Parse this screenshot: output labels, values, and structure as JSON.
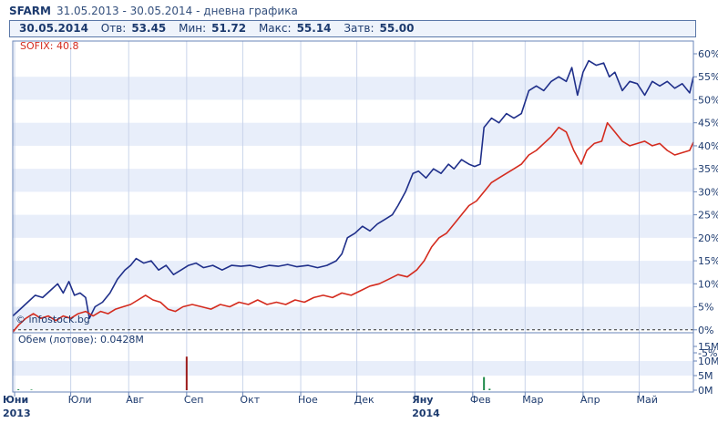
{
  "header": {
    "symbol": "SFARM",
    "range_text": "31.05.2013 - 30.05.2014 - дневна графика"
  },
  "quote": {
    "date": "30.05.2014",
    "open_label": "Отв:",
    "open_value": "53.45",
    "min_label": "Мин:",
    "min_value": "51.72",
    "max_label": "Макс:",
    "max_value": "55.14",
    "close_label": "Затв:",
    "close_value": "55.00"
  },
  "watermark": "© infostock.bg",
  "volume_label": "Обем (лотове): 0.0428M",
  "colors": {
    "main_series": "#1f2f8a",
    "index_series": "#d42b1e",
    "band": "#e8eefa",
    "grid": "#c9d4ea",
    "frame": "#6a86b8",
    "volume_up": "#1f8a4a",
    "volume_down": "#9b1c1c"
  },
  "chart_data": [
    {
      "type": "line",
      "x_range": [
        "2013-05-31",
        "2014-05-30"
      ],
      "x_ticks": [
        {
          "date": "2013-06-01",
          "label": "Юни"
        },
        {
          "date": "2013-07-01",
          "label": "Юли"
        },
        {
          "date": "2013-08-01",
          "label": "Авг"
        },
        {
          "date": "2013-09-01",
          "label": "Сеп"
        },
        {
          "date": "2013-10-01",
          "label": "Окт"
        },
        {
          "date": "2013-11-01",
          "label": "Ное"
        },
        {
          "date": "2013-12-01",
          "label": "Дек"
        },
        {
          "date": "2014-01-01",
          "label": "Яну"
        },
        {
          "date": "2014-02-01",
          "label": "Фев"
        },
        {
          "date": "2014-03-01",
          "label": "Мар"
        },
        {
          "date": "2014-04-01",
          "label": "Апр"
        },
        {
          "date": "2014-05-01",
          "label": "Май"
        }
      ],
      "year_labels": [
        {
          "date": "2013-06-01",
          "label": "2013"
        },
        {
          "date": "2014-01-01",
          "label": "2014"
        }
      ],
      "y_ticks": [
        "60%",
        "55%",
        "50%",
        "45%",
        "40%",
        "35%",
        "30%",
        "25%",
        "20%",
        "15%",
        "10%",
        "5%",
        "0%",
        "-5%"
      ],
      "ylim": [
        -5,
        60
      ],
      "series": [
        {
          "name": "SFARM",
          "points": [
            [
              "2013-05-31",
              3
            ],
            [
              "2013-06-04",
              4.5
            ],
            [
              "2013-06-08",
              6
            ],
            [
              "2013-06-12",
              7.5
            ],
            [
              "2013-06-16",
              7
            ],
            [
              "2013-06-20",
              8.5
            ],
            [
              "2013-06-24",
              10
            ],
            [
              "2013-06-27",
              8
            ],
            [
              "2013-06-30",
              10.5
            ],
            [
              "2013-07-03",
              7.5
            ],
            [
              "2013-07-06",
              8
            ],
            [
              "2013-07-09",
              7
            ],
            [
              "2013-07-11",
              2.5
            ],
            [
              "2013-07-14",
              5
            ],
            [
              "2013-07-18",
              6
            ],
            [
              "2013-07-22",
              8
            ],
            [
              "2013-07-26",
              11
            ],
            [
              "2013-07-30",
              13
            ],
            [
              "2013-08-02",
              14
            ],
            [
              "2013-08-05",
              15.5
            ],
            [
              "2013-08-09",
              14.5
            ],
            [
              "2013-08-13",
              15
            ],
            [
              "2013-08-17",
              13
            ],
            [
              "2013-08-21",
              14
            ],
            [
              "2013-08-25",
              12
            ],
            [
              "2013-08-29",
              13
            ],
            [
              "2013-09-02",
              14
            ],
            [
              "2013-09-06",
              14.5
            ],
            [
              "2013-09-10",
              13.5
            ],
            [
              "2013-09-15",
              14
            ],
            [
              "2013-09-20",
              13
            ],
            [
              "2013-09-25",
              14
            ],
            [
              "2013-09-30",
              13.8
            ],
            [
              "2013-10-05",
              14
            ],
            [
              "2013-10-10",
              13.5
            ],
            [
              "2013-10-15",
              14
            ],
            [
              "2013-10-20",
              13.8
            ],
            [
              "2013-10-25",
              14.2
            ],
            [
              "2013-10-30",
              13.7
            ],
            [
              "2013-11-05",
              14
            ],
            [
              "2013-11-10",
              13.5
            ],
            [
              "2013-11-15",
              14
            ],
            [
              "2013-11-20",
              15
            ],
            [
              "2013-11-23",
              16.5
            ],
            [
              "2013-11-26",
              20
            ],
            [
              "2013-11-30",
              21
            ],
            [
              "2013-12-04",
              22.5
            ],
            [
              "2013-12-08",
              21.5
            ],
            [
              "2013-12-12",
              23
            ],
            [
              "2013-12-16",
              24
            ],
            [
              "2013-12-20",
              25
            ],
            [
              "2013-12-23",
              27
            ],
            [
              "2013-12-27",
              30
            ],
            [
              "2013-12-31",
              34
            ],
            [
              "2014-01-03",
              34.5
            ],
            [
              "2014-01-07",
              33
            ],
            [
              "2014-01-11",
              35
            ],
            [
              "2014-01-15",
              34
            ],
            [
              "2014-01-19",
              36
            ],
            [
              "2014-01-22",
              35
            ],
            [
              "2014-01-26",
              37
            ],
            [
              "2014-01-30",
              36
            ],
            [
              "2014-02-02",
              35.5
            ],
            [
              "2014-02-05",
              36
            ],
            [
              "2014-02-07",
              44
            ],
            [
              "2014-02-11",
              46
            ],
            [
              "2014-02-15",
              45
            ],
            [
              "2014-02-19",
              47
            ],
            [
              "2014-02-23",
              46
            ],
            [
              "2014-02-27",
              47
            ],
            [
              "2014-03-03",
              52
            ],
            [
              "2014-03-07",
              53
            ],
            [
              "2014-03-11",
              52
            ],
            [
              "2014-03-15",
              54
            ],
            [
              "2014-03-19",
              55
            ],
            [
              "2014-03-23",
              54
            ],
            [
              "2014-03-26",
              57
            ],
            [
              "2014-03-29",
              51
            ],
            [
              "2014-04-01",
              56
            ],
            [
              "2014-04-04",
              58.5
            ],
            [
              "2014-04-08",
              57.5
            ],
            [
              "2014-04-12",
              58
            ],
            [
              "2014-04-15",
              55
            ],
            [
              "2014-04-18",
              56
            ],
            [
              "2014-04-22",
              52
            ],
            [
              "2014-04-26",
              54
            ],
            [
              "2014-04-30",
              53.5
            ],
            [
              "2014-05-04",
              51
            ],
            [
              "2014-05-08",
              54
            ],
            [
              "2014-05-12",
              53
            ],
            [
              "2014-05-16",
              54
            ],
            [
              "2014-05-20",
              52.5
            ],
            [
              "2014-05-24",
              53.5
            ],
            [
              "2014-05-28",
              51.5
            ],
            [
              "2014-05-30",
              55
            ]
          ]
        },
        {
          "name": "SOFIX: 40.8",
          "points": [
            [
              "2013-05-31",
              -0.5
            ],
            [
              "2013-06-03",
              1
            ],
            [
              "2013-06-07",
              2.5
            ],
            [
              "2013-06-11",
              3.5
            ],
            [
              "2013-06-15",
              2.5
            ],
            [
              "2013-06-19",
              3
            ],
            [
              "2013-06-23",
              2
            ],
            [
              "2013-06-27",
              3
            ],
            [
              "2013-07-01",
              2.5
            ],
            [
              "2013-07-05",
              3.5
            ],
            [
              "2013-07-09",
              4
            ],
            [
              "2013-07-13",
              3
            ],
            [
              "2013-07-17",
              4
            ],
            [
              "2013-07-21",
              3.5
            ],
            [
              "2013-07-25",
              4.5
            ],
            [
              "2013-07-29",
              5
            ],
            [
              "2013-08-02",
              5.5
            ],
            [
              "2013-08-06",
              6.5
            ],
            [
              "2013-08-10",
              7.5
            ],
            [
              "2013-08-14",
              6.5
            ],
            [
              "2013-08-18",
              6
            ],
            [
              "2013-08-22",
              4.5
            ],
            [
              "2013-08-26",
              4
            ],
            [
              "2013-08-30",
              5
            ],
            [
              "2013-09-04",
              5.5
            ],
            [
              "2013-09-09",
              5
            ],
            [
              "2013-09-14",
              4.5
            ],
            [
              "2013-09-19",
              5.5
            ],
            [
              "2013-09-24",
              5
            ],
            [
              "2013-09-29",
              6
            ],
            [
              "2013-10-04",
              5.5
            ],
            [
              "2013-10-09",
              6.5
            ],
            [
              "2013-10-14",
              5.5
            ],
            [
              "2013-10-19",
              6
            ],
            [
              "2013-10-24",
              5.5
            ],
            [
              "2013-10-29",
              6.5
            ],
            [
              "2013-11-03",
              6
            ],
            [
              "2013-11-08",
              7
            ],
            [
              "2013-11-13",
              7.5
            ],
            [
              "2013-11-18",
              7
            ],
            [
              "2013-11-23",
              8
            ],
            [
              "2013-11-28",
              7.5
            ],
            [
              "2013-12-03",
              8.5
            ],
            [
              "2013-12-08",
              9.5
            ],
            [
              "2013-12-13",
              10
            ],
            [
              "2013-12-18",
              11
            ],
            [
              "2013-12-23",
              12
            ],
            [
              "2013-12-28",
              11.5
            ],
            [
              "2014-01-02",
              13
            ],
            [
              "2014-01-06",
              15
            ],
            [
              "2014-01-10",
              18
            ],
            [
              "2014-01-14",
              20
            ],
            [
              "2014-01-18",
              21
            ],
            [
              "2014-01-22",
              23
            ],
            [
              "2014-01-26",
              25
            ],
            [
              "2014-01-30",
              27
            ],
            [
              "2014-02-03",
              28
            ],
            [
              "2014-02-07",
              30
            ],
            [
              "2014-02-11",
              32
            ],
            [
              "2014-02-15",
              33
            ],
            [
              "2014-02-19",
              34
            ],
            [
              "2014-02-23",
              35
            ],
            [
              "2014-02-27",
              36
            ],
            [
              "2014-03-03",
              38
            ],
            [
              "2014-03-07",
              39
            ],
            [
              "2014-03-11",
              40.5
            ],
            [
              "2014-03-15",
              42
            ],
            [
              "2014-03-19",
              44
            ],
            [
              "2014-03-23",
              43
            ],
            [
              "2014-03-27",
              39
            ],
            [
              "2014-03-31",
              36
            ],
            [
              "2014-04-03",
              39
            ],
            [
              "2014-04-07",
              40.5
            ],
            [
              "2014-04-11",
              41
            ],
            [
              "2014-04-14",
              45
            ],
            [
              "2014-04-18",
              43
            ],
            [
              "2014-04-22",
              41
            ],
            [
              "2014-04-26",
              40
            ],
            [
              "2014-04-30",
              40.5
            ],
            [
              "2014-05-04",
              41
            ],
            [
              "2014-05-08",
              40
            ],
            [
              "2014-05-12",
              40.5
            ],
            [
              "2014-05-16",
              39
            ],
            [
              "2014-05-20",
              38
            ],
            [
              "2014-05-24",
              38.5
            ],
            [
              "2014-05-28",
              39
            ],
            [
              "2014-05-30",
              40.8
            ]
          ]
        }
      ]
    },
    {
      "type": "bar",
      "y_ticks": [
        "15M",
        "10M",
        "5M",
        "0M"
      ],
      "ylim": [
        0,
        15
      ],
      "bars": [
        {
          "date": "2013-09-01",
          "value": 11.5,
          "kind": "down"
        },
        {
          "date": "2014-02-07",
          "value": 4.5,
          "kind": "up"
        },
        {
          "date": "2013-06-03",
          "value": 0.3,
          "kind": "up"
        },
        {
          "date": "2013-06-10",
          "value": 0.2,
          "kind": "up"
        },
        {
          "date": "2014-02-10",
          "value": 0.5,
          "kind": "up"
        }
      ]
    }
  ]
}
